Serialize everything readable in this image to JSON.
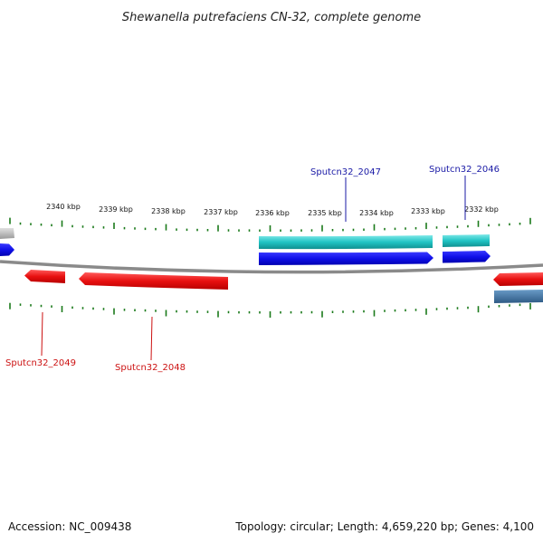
{
  "title": "Shewanella putrefaciens CN-32, complete genome",
  "footer": {
    "accession": "Accession: NC_009438",
    "summary": "Topology: circular; Length: 4,659,220 bp; Genes: 4,100"
  },
  "ruler": {
    "labels": [
      "2340 kbp",
      "2339 kbp",
      "2338 kbp",
      "2337 kbp",
      "2336 kbp",
      "2335 kbp",
      "2334 kbp",
      "2333 kbp",
      "2332 kbp"
    ]
  },
  "genes": {
    "labelled": [
      {
        "id": "Sputcn32_2047",
        "label": "Sputcn32_2047",
        "strand": "forward"
      },
      {
        "id": "Sputcn32_2046",
        "label": "Sputcn32_2046",
        "strand": "forward"
      },
      {
        "id": "Sputcn32_2049",
        "label": "Sputcn32_2049",
        "strand": "reverse"
      },
      {
        "id": "Sputcn32_2048",
        "label": "Sputcn32_2048",
        "strand": "reverse"
      }
    ]
  },
  "colors": {
    "forward_cds": "#1010e8",
    "forward_feature": "#20c4c4",
    "reverse_cds": "#e81010",
    "reverse_feature": "#3a6e9e",
    "other_feature": "#aaaaaa",
    "backbone": "#888888",
    "tick": "#1a7a1a"
  }
}
